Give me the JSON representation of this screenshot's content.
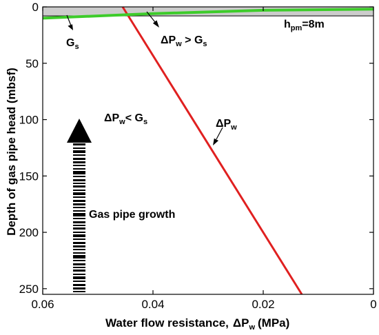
{
  "chart_data": {
    "type": "line",
    "x_axis": {
      "label_main": "Water flow resistance,",
      "label_symbol": "ΔP",
      "label_sub": "w",
      "label_unit": "(MPa)",
      "range": [
        0.06,
        0
      ],
      "reversed": true,
      "ticks": [
        0.06,
        0.04,
        0.02,
        0
      ],
      "tick_labels": [
        "0.06",
        "0.04",
        "0.02",
        "0"
      ]
    },
    "y_axis": {
      "label": "Depth of gas pipe head (mbsf)",
      "range": [
        0,
        255
      ],
      "inverted": true,
      "ticks": [
        0,
        50,
        100,
        150,
        200,
        250
      ],
      "tick_labels": [
        "0",
        "50",
        "100",
        "150",
        "200",
        "250"
      ]
    },
    "grid": false,
    "series": [
      {
        "id": "dpw",
        "color": "#e02020",
        "x": [
          0.0455,
          0.013
        ],
        "y": [
          0,
          255
        ]
      },
      {
        "id": "gs",
        "color": "#3dcc2a",
        "x": [
          0.06,
          0.04,
          0.02,
          0.0
        ],
        "y": [
          10,
          6,
          3,
          2
        ]
      }
    ],
    "shaded_band": {
      "x_range": [
        0.06,
        0
      ],
      "y_range": [
        0,
        8
      ],
      "color": "#cccccc"
    },
    "annotations": {
      "gs": {
        "main": "G",
        "sub": "s"
      },
      "dpw_gt_gs": {
        "pre": "ΔP",
        "sub1": "w",
        "mid": " > G",
        "sub2": "s"
      },
      "hpm": {
        "pre": "h",
        "sub": "pm",
        "post": "=8m"
      },
      "dpw_lt_gs": {
        "pre": "ΔP",
        "sub1": "w",
        "mid": "< G",
        "sub2": "s"
      },
      "dpw": {
        "main": "ΔP",
        "sub": "w"
      },
      "growth": "Gas pipe growth"
    }
  }
}
